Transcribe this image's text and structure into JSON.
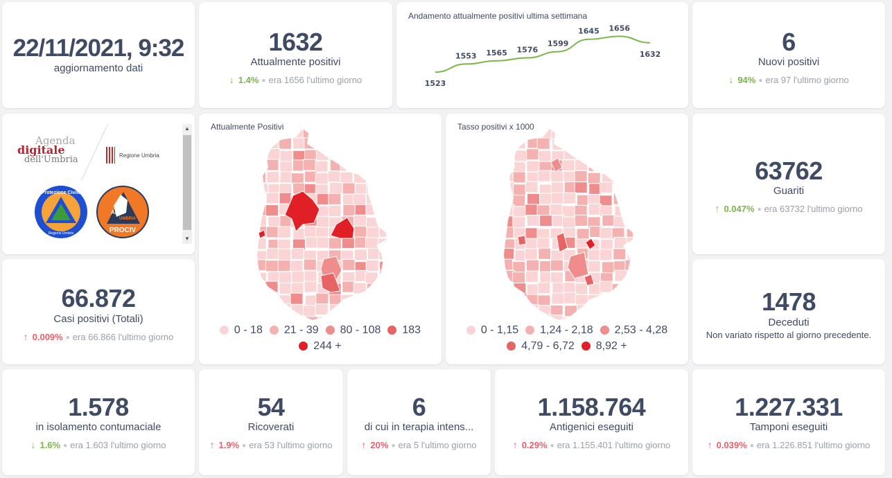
{
  "update": {
    "datetime": "22/11/2021, 9:32",
    "label": "aggiornamento dati"
  },
  "attualmente_positivi": {
    "value": "1632",
    "label": "Attualmente positivi",
    "direction": "down",
    "arrow": "↓",
    "pct": "1.4%",
    "prev": "era 1656",
    "suffix": "l'ultimo giorno"
  },
  "nuovi_positivi": {
    "value": "6",
    "label": "Nuovi positivi",
    "direction": "down",
    "arrow": "↓",
    "pct": "94%",
    "prev": "era 97",
    "suffix": "l'ultimo giorno"
  },
  "guariti": {
    "value": "63762",
    "label": "Guariti",
    "direction": "up-good",
    "arrow": "↑",
    "pct": "0.047%",
    "prev": "era 63732",
    "suffix": "l'ultimo giorno"
  },
  "deceduti": {
    "value": "1478",
    "label": "Deceduti",
    "note": "Non variato rispetto al giorno precedente."
  },
  "casi_totali": {
    "value": "66.872",
    "label": "Casi positivi (Totali)",
    "direction": "up",
    "arrow": "↑",
    "pct": "0.009%",
    "prev": "era 66.866",
    "suffix": "l'ultimo giorno"
  },
  "isolamento": {
    "value": "1.578",
    "label": "in isolamento contumaciale",
    "direction": "down",
    "arrow": "↓",
    "pct": "1.6%",
    "prev": "era 1.603",
    "suffix": "l'ultimo giorno"
  },
  "ricoverati": {
    "value": "54",
    "label": "Ricoverati",
    "direction": "up",
    "arrow": "↑",
    "pct": "1.9%",
    "prev": "era 53",
    "suffix": "l'ultimo giorno"
  },
  "terapia_intensiva": {
    "value": "6",
    "label": "di cui in terapia intens...",
    "direction": "up",
    "arrow": "↑",
    "pct": "20%",
    "prev": "era 5",
    "suffix": "l'ultimo giorno"
  },
  "antigenici": {
    "value": "1.158.764",
    "label": "Antigenici eseguiti",
    "direction": "up",
    "arrow": "↑",
    "pct": "0.29%",
    "prev": "era 1.155.401",
    "suffix": "l'ultimo giorno"
  },
  "tamponi": {
    "value": "1.227.331",
    "label": "Tamponi eseguiti",
    "direction": "up",
    "arrow": "↑",
    "pct": "0.039%",
    "prev": "era 1.226.851",
    "suffix": "l'ultimo giorno"
  },
  "logos": {
    "agenda": [
      "Agenda",
      "digitale",
      "dell'Umbria"
    ],
    "regione": "Regione Umbria",
    "protezione": [
      "Protezione Civile",
      "Regione Umbria"
    ],
    "anci": [
      "ANCI",
      "UMBRIA",
      "PROCIV"
    ]
  },
  "map_positivi": {
    "title": "Attualmente Positivi",
    "legend": [
      {
        "label": "0 - 18",
        "color": "#fbd5d5"
      },
      {
        "label": "21 - 39",
        "color": "#f5b0b0"
      },
      {
        "label": "80 - 108",
        "color": "#ef8c8c"
      },
      {
        "label": "183",
        "color": "#e86464"
      },
      {
        "label": "244 +",
        "color": "#e11f26"
      }
    ]
  },
  "map_tasso": {
    "title": "Tasso positivi x 1000",
    "legend": [
      {
        "label": "0 - 1,15",
        "color": "#fbd5d5"
      },
      {
        "label": "1,24 - 2,18",
        "color": "#f5b0b0"
      },
      {
        "label": "2,53 - 4,28",
        "color": "#ef8c8c"
      },
      {
        "label": "4,79 - 6,72",
        "color": "#e86464"
      },
      {
        "label": "8,92 +",
        "color": "#e11f26"
      }
    ]
  },
  "colors": {
    "text": "#3f4a64",
    "up": "#e8606a",
    "down": "#7ab648",
    "line": "#7ab648",
    "muted": "#9aa0aa"
  },
  "chart_data": {
    "type": "line",
    "title": "Andamento attualmente positivi ultima settimana",
    "xlabel": "",
    "ylabel": "",
    "x": [
      1,
      2,
      3,
      4,
      5,
      6,
      7,
      8
    ],
    "series": [
      {
        "name": "Attualmente positivi",
        "values": [
          1523,
          1553,
          1565,
          1576,
          1599,
          1645,
          1656,
          1632
        ]
      }
    ],
    "labels": [
      "1523",
      "1553",
      "1565",
      "1576",
      "1599",
      "1645",
      "1656",
      "1632"
    ],
    "ylim": [
      1500,
      1670
    ],
    "grid": false,
    "legend": "none"
  }
}
